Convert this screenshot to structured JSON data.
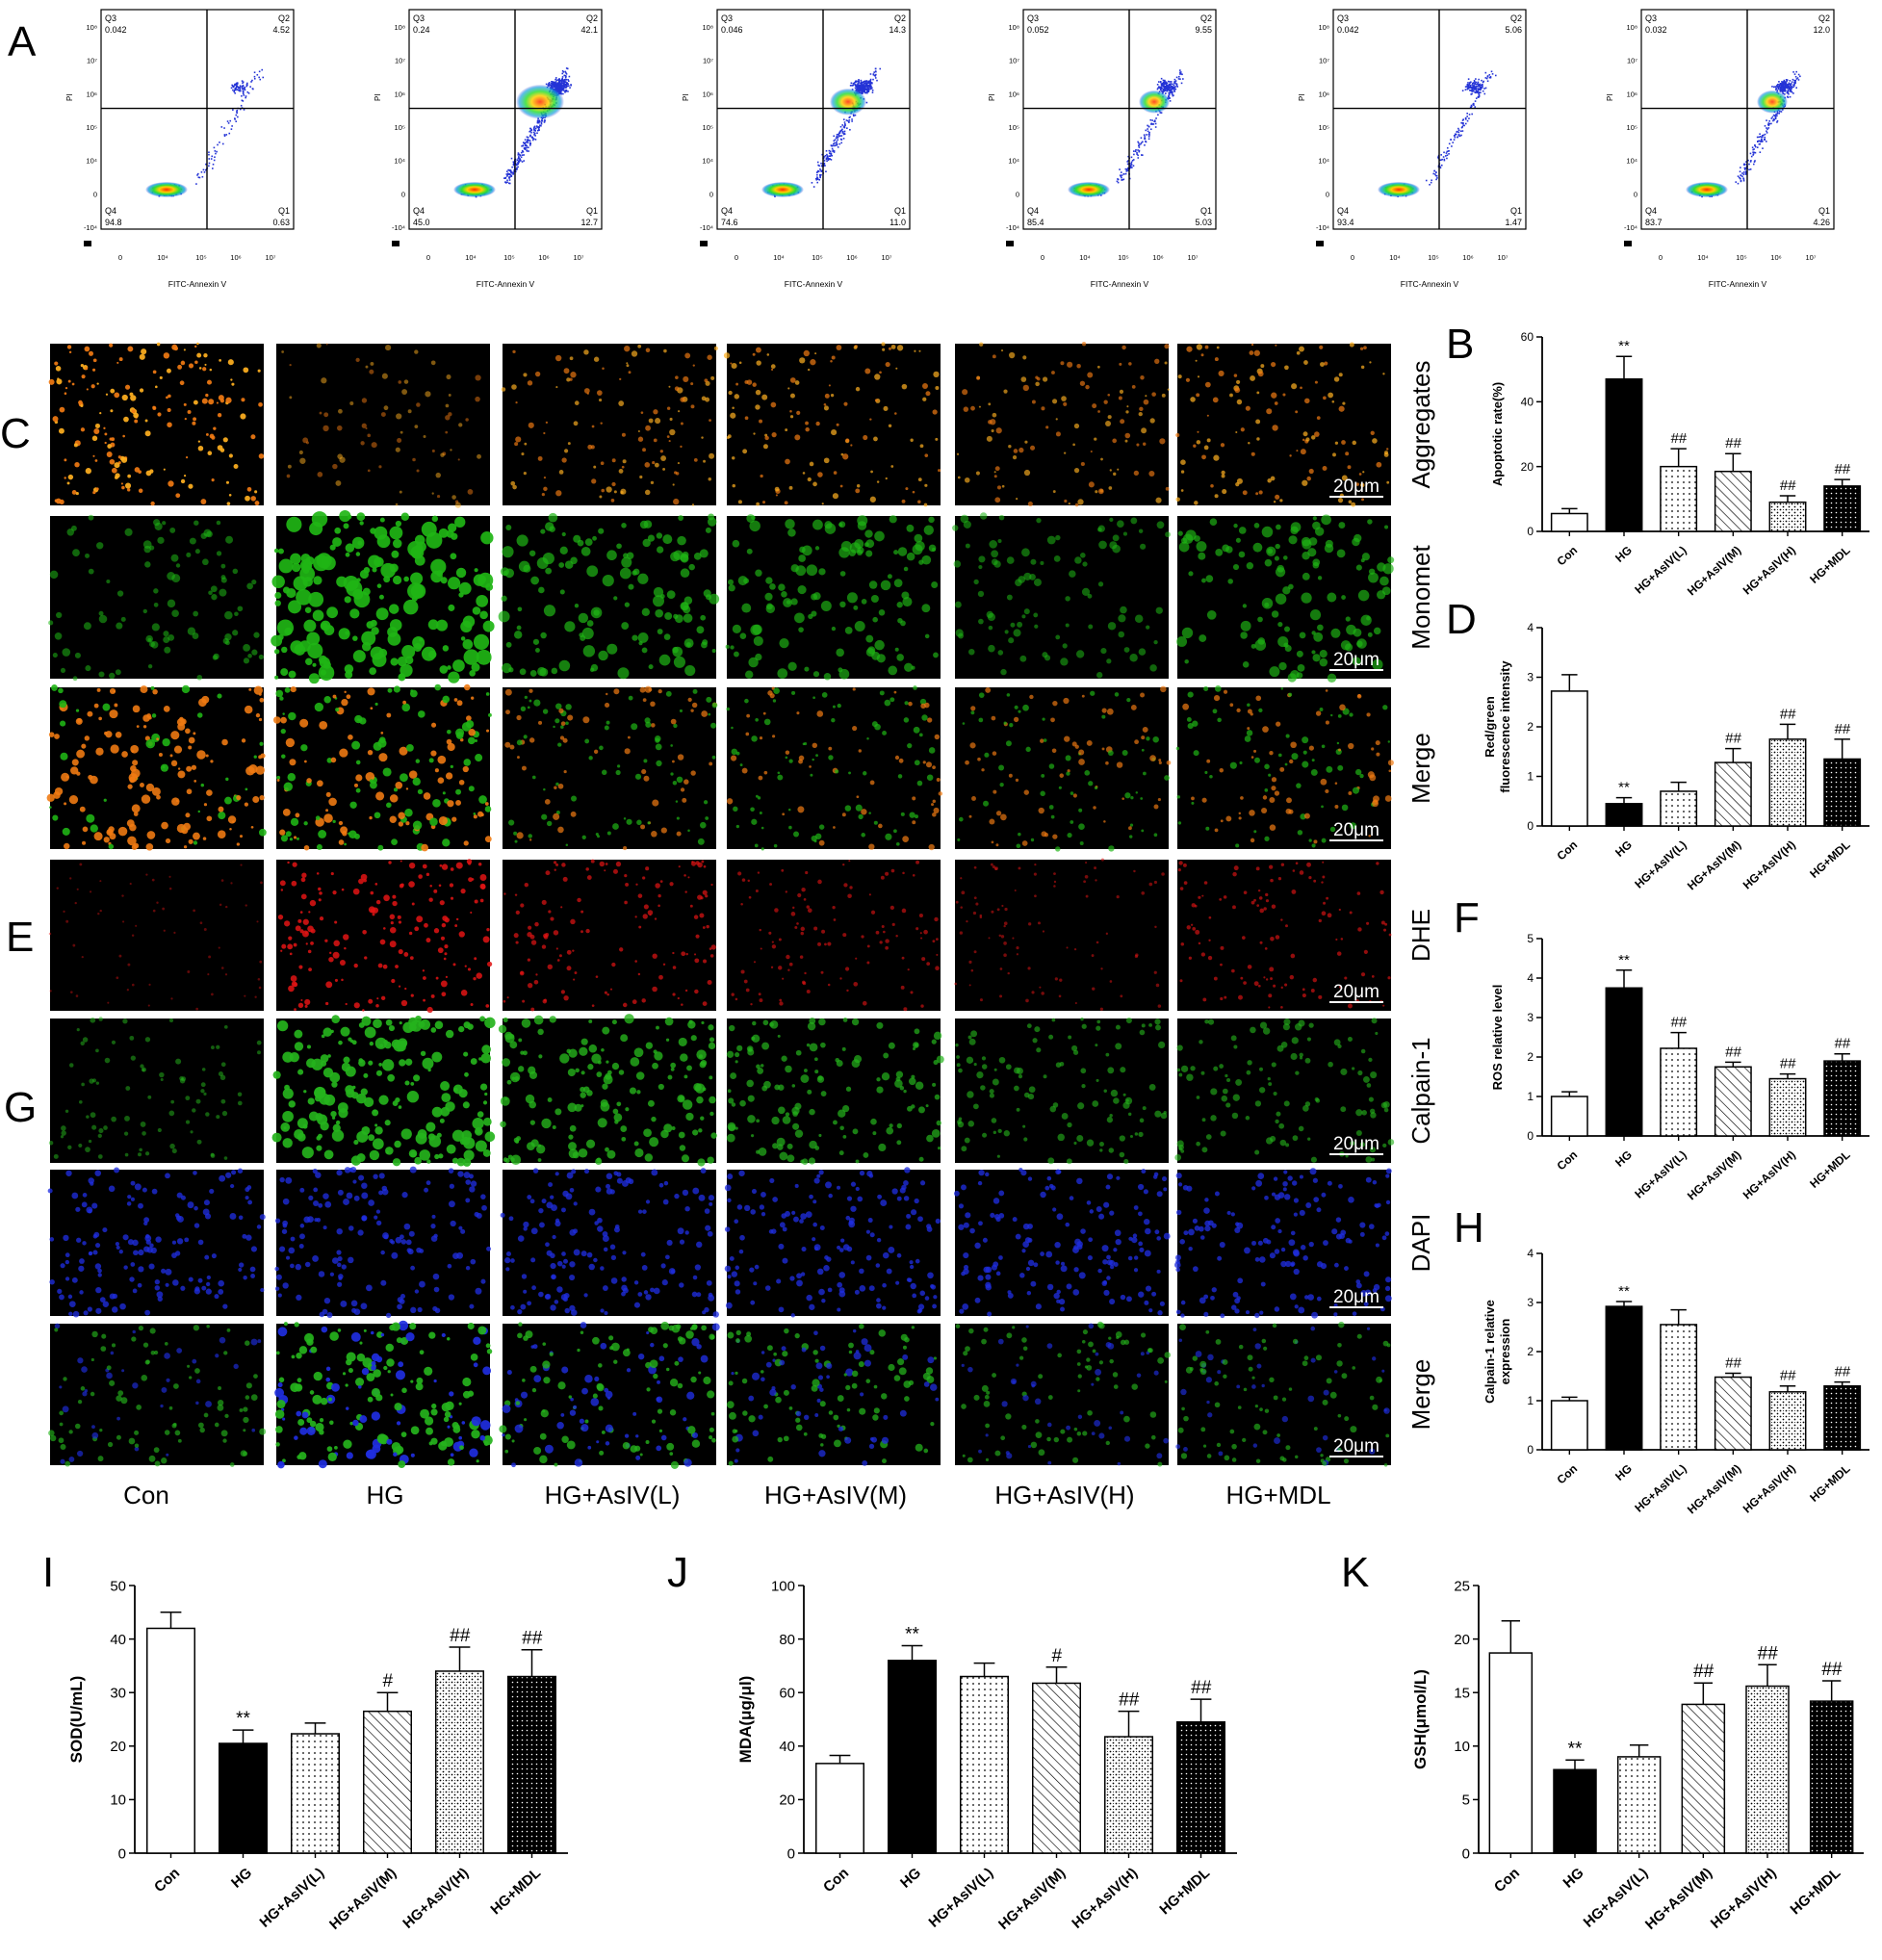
{
  "panel_letters": [
    "A",
    "B",
    "C",
    "D",
    "E",
    "F",
    "G",
    "H",
    "I",
    "J",
    "K"
  ],
  "groups": [
    "Con",
    "HG",
    "HG+AsIV(L)",
    "HG+AsIV(M)",
    "HG+AsIV(H)",
    "HG+MDL"
  ],
  "colors": {
    "black": "#000000",
    "white": "#ffffff",
    "flow_dots": "#2433d6",
    "flow_hot": "#e8e81a",
    "aggregates": "#f07a12",
    "monomer": "#1fb515",
    "dhe": "#e01414",
    "calpain": "#25b31c",
    "dapi": "#1f2ee0"
  },
  "flow": {
    "xlabel": "FITC-Annexin V",
    "xlabel_alt": "FITC-Annexin V",
    "ylabel": "PI",
    "quadrant_names": [
      "Q1",
      "Q2",
      "Q3",
      "Q4"
    ],
    "x_ticks": [
      "0",
      "10⁴",
      "10⁵",
      "10⁶",
      "10⁷"
    ],
    "y_ticks": [
      "10⁸",
      "10⁷",
      "10⁶",
      "10⁵",
      "10⁴",
      "0",
      "-10⁴"
    ],
    "panels": [
      {
        "q3": "0.042",
        "q2": "4.52",
        "q4": "94.8",
        "q1": "0.63",
        "level": 0
      },
      {
        "q3": "0.24",
        "q2": "42.1",
        "q4": "45.0",
        "q1": "12.7",
        "level": 5
      },
      {
        "q3": "0.046",
        "q2": "14.3",
        "q4": "74.6",
        "q1": "11.0",
        "level": 3
      },
      {
        "q3": "0.052",
        "q2": "9.55",
        "q4": "85.4",
        "q1": "5.03",
        "level": 2
      },
      {
        "q3": "0.042",
        "q2": "5.06",
        "q4": "93.4",
        "q1": "1.47",
        "level": 1
      },
      {
        "q3": "0.032",
        "q2": "12.0",
        "q4": "83.7",
        "q1": "4.26",
        "level": 2
      }
    ]
  },
  "micrographs": {
    "rows": [
      {
        "label": "Aggregates",
        "stain": "aggregates",
        "scale_bar": "20μm",
        "intensity": [
          0.95,
          0.25,
          0.55,
          0.6,
          0.5,
          0.6
        ]
      },
      {
        "label": "Monomet",
        "stain": "monomer",
        "scale_bar": "20μm",
        "intensity": [
          0.35,
          0.95,
          0.6,
          0.55,
          0.35,
          0.55
        ]
      },
      {
        "label": "Merge",
        "stain": "merge",
        "scale_bar": "20μm",
        "intensity": [
          0.9,
          0.9,
          0.6,
          0.6,
          0.55,
          0.6
        ]
      },
      {
        "label": "DHE",
        "stain": "dhe",
        "scale_bar": "20μm",
        "intensity": [
          0.15,
          0.85,
          0.6,
          0.45,
          0.3,
          0.5
        ]
      },
      {
        "label": "Calpain-1",
        "stain": "calpain",
        "scale_bar": "20μm",
        "intensity": [
          0.3,
          0.95,
          0.75,
          0.6,
          0.45,
          0.45
        ]
      },
      {
        "label": "DAPI",
        "stain": "dapi",
        "scale_bar": "20μm",
        "intensity": [
          0.7,
          0.7,
          0.7,
          0.7,
          0.7,
          0.7
        ]
      },
      {
        "label": "Merge",
        "stain": "merge2",
        "scale_bar": "20μm",
        "intensity": [
          0.5,
          0.95,
          0.75,
          0.65,
          0.5,
          0.5
        ]
      }
    ]
  },
  "chart_data": [
    {
      "type": "bar",
      "panel": "B",
      "ylabel": "Apoptotic rate(%)",
      "ylim": [
        0,
        60
      ],
      "yticks": [
        0,
        20,
        40,
        60
      ],
      "categories": [
        "Con",
        "HG",
        "HG+AsIV(L)",
        "HG+AsIV(M)",
        "HG+AsIV(H)",
        "HG+MDL"
      ],
      "values": [
        5.5,
        47,
        20,
        18.5,
        9,
        14
      ],
      "errors": [
        1.5,
        7,
        5.5,
        5.5,
        2,
        2
      ],
      "annotations": [
        "",
        "**",
        "##",
        "##",
        "##",
        "##"
      ]
    },
    {
      "type": "bar",
      "panel": "D",
      "ylabel": "Red/green fluorescence intensity",
      "ylabel_lines": [
        "Red/green",
        "fluorescence intensity"
      ],
      "ylim": [
        0,
        4
      ],
      "yticks": [
        0,
        1,
        2,
        3,
        4
      ],
      "categories": [
        "Con",
        "HG",
        "HG+AsIV(L)",
        "HG+AsIV(M)",
        "HG+AsIV(H)",
        "HG+MDL"
      ],
      "values": [
        2.72,
        0.45,
        0.7,
        1.28,
        1.75,
        1.35
      ],
      "errors": [
        0.33,
        0.12,
        0.18,
        0.28,
        0.3,
        0.4
      ],
      "annotations": [
        "",
        "**",
        "",
        "##",
        "##",
        "##"
      ]
    },
    {
      "type": "bar",
      "panel": "F",
      "ylabel": "ROS relative level",
      "ylim": [
        0,
        5
      ],
      "yticks": [
        0,
        1,
        2,
        3,
        4,
        5
      ],
      "categories": [
        "Con",
        "HG",
        "HG+AsIV(L)",
        "HG+AsIV(M)",
        "HG+AsIV(H)",
        "HG+MDL"
      ],
      "values": [
        1.0,
        3.75,
        2.22,
        1.75,
        1.45,
        1.9
      ],
      "errors": [
        0.12,
        0.45,
        0.4,
        0.12,
        0.12,
        0.18
      ],
      "annotations": [
        "",
        "**",
        "##",
        "##",
        "##",
        "##"
      ]
    },
    {
      "type": "bar",
      "panel": "H",
      "ylabel": "Calpain-1 relative expression",
      "ylabel_lines": [
        "Calpain-1 relative",
        "expression"
      ],
      "ylim": [
        0,
        4
      ],
      "yticks": [
        0,
        1,
        2,
        3,
        4
      ],
      "categories": [
        "Con",
        "HG",
        "HG+AsIV(L)",
        "HG+AsIV(M)",
        "HG+AsIV(H)",
        "HG+MDL"
      ],
      "values": [
        1.0,
        2.92,
        2.55,
        1.48,
        1.18,
        1.3
      ],
      "errors": [
        0.07,
        0.1,
        0.3,
        0.08,
        0.12,
        0.08
      ],
      "annotations": [
        "",
        "**",
        "",
        "##",
        "##",
        "##"
      ]
    },
    {
      "type": "bar",
      "panel": "I",
      "ylabel": "SOD(U/mL)",
      "ylim": [
        0,
        50
      ],
      "yticks": [
        0,
        10,
        20,
        30,
        40,
        50
      ],
      "categories": [
        "Con",
        "HG",
        "HG+AsIV(L)",
        "HG+AsIV(M)",
        "HG+AsIV(H)",
        "HG+MDL"
      ],
      "values": [
        42,
        20.5,
        22.3,
        26.5,
        34,
        33
      ],
      "errors": [
        3,
        2.5,
        2,
        3.5,
        4.5,
        5
      ],
      "annotations": [
        "",
        "**",
        "",
        "#",
        "##",
        "##"
      ]
    },
    {
      "type": "bar",
      "panel": "J",
      "ylabel": "MDA(μg/μl)",
      "ylim": [
        0,
        100
      ],
      "yticks": [
        0,
        20,
        40,
        60,
        80,
        100
      ],
      "categories": [
        "Con",
        "HG",
        "HG+AsIV(L)",
        "HG+AsIV(M)",
        "HG+AsIV(H)",
        "HG+MDL"
      ],
      "values": [
        33.5,
        72,
        66,
        63.5,
        43.5,
        49
      ],
      "errors": [
        3,
        5.5,
        5,
        6,
        9.5,
        8.5
      ],
      "annotations": [
        "",
        "**",
        "",
        "#",
        "##",
        "##"
      ]
    },
    {
      "type": "bar",
      "panel": "K",
      "ylabel": "GSH(μmol/L)",
      "ylim": [
        0,
        25
      ],
      "yticks": [
        0,
        5,
        10,
        15,
        20,
        25
      ],
      "categories": [
        "Con",
        "HG",
        "HG+AsIV(L)",
        "HG+AsIV(M)",
        "HG+AsIV(H)",
        "HG+MDL"
      ],
      "values": [
        18.7,
        7.8,
        9,
        13.9,
        15.6,
        14.2
      ],
      "errors": [
        3,
        0.9,
        1.1,
        2,
        2,
        1.9
      ],
      "annotations": [
        "",
        "**",
        "",
        "##",
        "##",
        "##"
      ]
    }
  ]
}
